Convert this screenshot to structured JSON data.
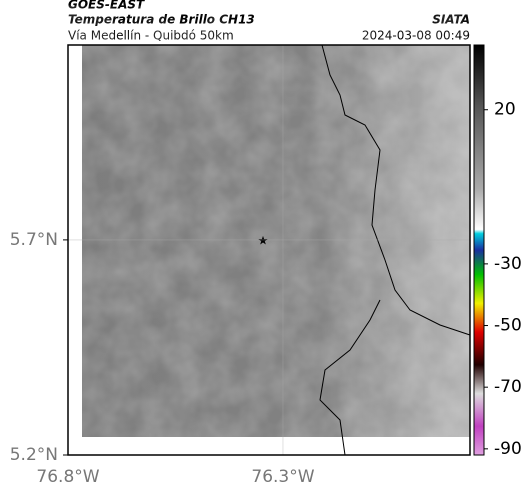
{
  "header": {
    "source": "GOES-EAST",
    "title": "Temperatura de Brillo CH13",
    "subtitle": "Vía Medellín - Quibdó 50km",
    "agency": "SIATA",
    "timestamp": "2024-03-08 00:49"
  },
  "map": {
    "xlim": [
      -76.8,
      -75.865
    ],
    "ylim": [
      5.2,
      6.153
    ],
    "xticks": [
      {
        "value": -76.8,
        "label": "76.8°W"
      },
      {
        "value": -76.3,
        "label": "76.3°W"
      }
    ],
    "yticks": [
      {
        "value": 5.2,
        "label": "5.2°N"
      },
      {
        "value": 5.7,
        "label": "5.7°N"
      }
    ],
    "grid": true
  },
  "colorbar": {
    "ylim": [
      -92,
      41
    ],
    "yticks": [
      20,
      -30,
      -50,
      -70,
      -90
    ]
  }
}
